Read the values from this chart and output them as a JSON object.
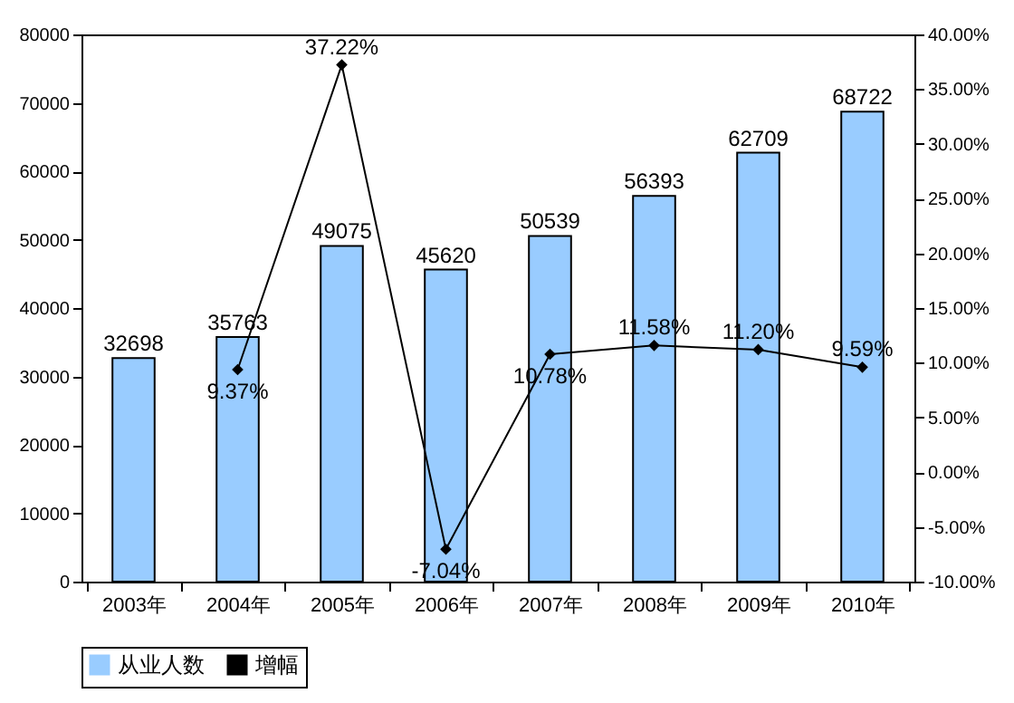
{
  "chart_data": {
    "type": "bar",
    "categories": [
      "2003年",
      "2004年",
      "2005年",
      "2006年",
      "2007年",
      "2008年",
      "2009年",
      "2010年"
    ],
    "series": [
      {
        "name": "从业人数",
        "type": "bar",
        "color": "#99ccff",
        "values": [
          32698,
          35763,
          49075,
          45620,
          50539,
          56393,
          62709,
          68722
        ],
        "value_labels": [
          "32698",
          "35763",
          "49075",
          "45620",
          "50539",
          "56393",
          "62709",
          "68722"
        ]
      },
      {
        "name": "增幅",
        "type": "line",
        "axis": "y2",
        "color": "#000000",
        "marker": "diamond",
        "values": [
          null,
          9.37,
          37.22,
          -7.04,
          10.78,
          11.58,
          11.2,
          9.59
        ],
        "value_labels": [
          null,
          "9.37%",
          "37.22%",
          "-7.04%",
          "10.78%",
          "11.58%",
          "11.20%",
          "9.59%"
        ]
      }
    ],
    "ylim": [
      0,
      80000
    ],
    "yticks": [
      0,
      10000,
      20000,
      30000,
      40000,
      50000,
      60000,
      70000,
      80000
    ],
    "y2lim": [
      -10,
      40
    ],
    "y2ticks": [
      {
        "value": -10,
        "label": "-10.00%"
      },
      {
        "value": -5,
        "label": "-5.00%"
      },
      {
        "value": 0,
        "label": "0.00%"
      },
      {
        "value": 5,
        "label": "5.00%"
      },
      {
        "value": 10,
        "label": "10.00%"
      },
      {
        "value": 15,
        "label": "15.00%"
      },
      {
        "value": 20,
        "label": "20.00%"
      },
      {
        "value": 25,
        "label": "25.00%"
      },
      {
        "value": 30,
        "label": "30.00%"
      },
      {
        "value": 35,
        "label": "35.00%"
      },
      {
        "value": 40,
        "label": "40.00%"
      }
    ],
    "legend": "bottom",
    "grid": false
  }
}
